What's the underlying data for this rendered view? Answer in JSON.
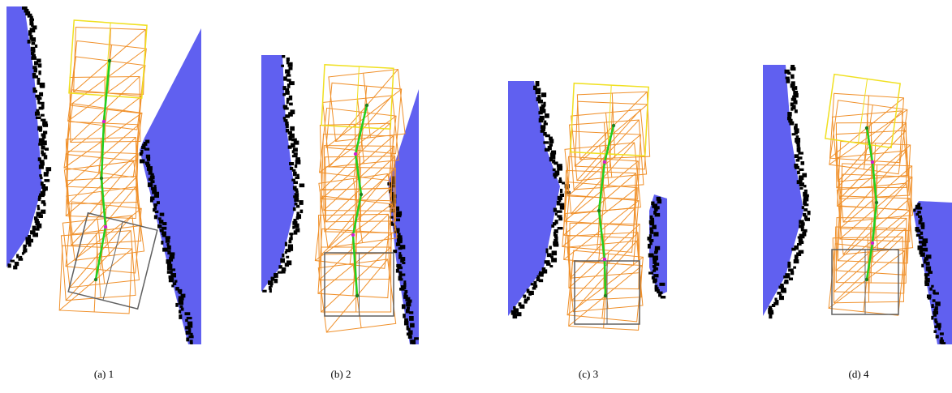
{
  "figure": {
    "panels": [
      {
        "caption": "(a) 1"
      },
      {
        "caption": "(b) 2"
      },
      {
        "caption": "(c) 3"
      },
      {
        "caption": "(d) 4"
      }
    ]
  }
}
